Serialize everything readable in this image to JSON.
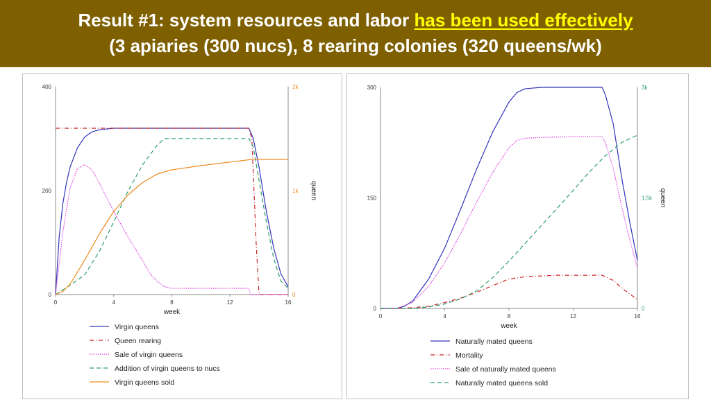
{
  "title": {
    "line1_prefix": "Result #1: system resources and labor ",
    "line1_highlight": "has been used effectively",
    "line2": "(3 apiaries (300 nucs), 8 rearing colonies (320 queens/wk)"
  },
  "colors": {
    "banner": "#7f6000",
    "title_text": "#ffffff",
    "highlight": "#ffff00"
  },
  "chart_data": [
    {
      "type": "line",
      "xlabel": "week",
      "ylabel_right": "queen",
      "xlim": [
        0,
        16
      ],
      "xticks": [
        "0",
        "4",
        "8",
        "12",
        "16"
      ],
      "ylim": [
        0,
        400
      ],
      "yticks_left": [
        "0",
        "200",
        "400"
      ],
      "ylim_right": [
        0,
        2000
      ],
      "yticks_right": [
        "0",
        "1k",
        "2k"
      ],
      "legend_placement": "bottom",
      "series": [
        {
          "name": "Virgin queens",
          "axis": "left",
          "color": "#3333bb",
          "dash": "",
          "x": [
            0,
            0.25,
            0.5,
            0.75,
            1,
            1.5,
            2,
            2.5,
            3,
            4,
            5,
            6,
            8,
            10,
            12,
            13.3,
            13.6,
            14,
            14.5,
            15,
            15.5,
            16
          ],
          "y": [
            0,
            110,
            175,
            215,
            245,
            282,
            303,
            313,
            317,
            320,
            320,
            320,
            320,
            320,
            320,
            320,
            300,
            245,
            160,
            90,
            40,
            15
          ]
        },
        {
          "name": "Queen rearing",
          "axis": "left",
          "color": "#cc2222",
          "dash": "6,3,1,3",
          "x": [
            0,
            13.3,
            13.5,
            13.8,
            14,
            16
          ],
          "y": [
            320,
            320,
            300,
            100,
            0,
            0
          ]
        },
        {
          "name": "Sale of virgin queens",
          "axis": "left",
          "color": "#e040e0",
          "dash": "1.5,1.5",
          "x": [
            0,
            0.5,
            1,
            1.5,
            2,
            2.5,
            3,
            4,
            5,
            6,
            6.5,
            7,
            7.5,
            8,
            10,
            12,
            13.3,
            13.4,
            16
          ],
          "y": [
            0,
            120,
            205,
            242,
            250,
            240,
            215,
            160,
            110,
            65,
            40,
            25,
            15,
            12,
            12,
            12,
            12,
            0,
            0
          ]
        },
        {
          "name": "Addition of virgin queens to nucs",
          "axis": "right",
          "color": "#2a9d6a",
          "dash": "6,4",
          "x": [
            0,
            1,
            2,
            3,
            4,
            5,
            6,
            7,
            7.5,
            8,
            10,
            12,
            13.3,
            13.6,
            14,
            14.5,
            15,
            15.5,
            16
          ],
          "y": [
            0,
            90,
            190,
            410,
            700,
            1000,
            1250,
            1440,
            1500,
            1500,
            1500,
            1500,
            1500,
            1420,
            1100,
            700,
            350,
            130,
            60
          ]
        },
        {
          "name": "Virgin queens sold",
          "axis": "right",
          "color": "#ee8a1e",
          "dash": "",
          "x": [
            0,
            0.5,
            1,
            2,
            3,
            4,
            5,
            6,
            7,
            8,
            10,
            12,
            13.5,
            16
          ],
          "y": [
            0,
            30,
            100,
            330,
            580,
            800,
            960,
            1080,
            1160,
            1200,
            1240,
            1275,
            1300,
            1300
          ]
        }
      ]
    },
    {
      "type": "line",
      "xlabel": "week",
      "ylabel_right": "queen",
      "xlim": [
        0,
        16
      ],
      "xticks": [
        "0",
        "4",
        "8",
        "12",
        "16"
      ],
      "ylim": [
        0,
        300
      ],
      "yticks_left": [
        "0",
        "150",
        "300"
      ],
      "ylim_right": [
        0,
        3000
      ],
      "yticks_right": [
        "0",
        "1.5k",
        "3k"
      ],
      "legend_placement": "bottom",
      "series": [
        {
          "name": "Naturally mated queens",
          "axis": "left",
          "color": "#3333bb",
          "dash": "",
          "x": [
            0,
            1,
            1.5,
            2,
            3,
            4,
            5,
            6,
            7,
            8,
            8.5,
            9,
            10,
            12,
            13.8,
            14,
            14.5,
            15,
            15.5,
            16
          ],
          "y": [
            0,
            0,
            3,
            10,
            40,
            82,
            135,
            190,
            240,
            280,
            293,
            298,
            300,
            300,
            300,
            290,
            250,
            180,
            120,
            65
          ]
        },
        {
          "name": "Mortality",
          "axis": "left",
          "color": "#cc2222",
          "dash": "6,3,1,3",
          "x": [
            0,
            1,
            2,
            3,
            4,
            5,
            6,
            7,
            8,
            9,
            10,
            11,
            12,
            13,
            13.8,
            14.5,
            15,
            16
          ],
          "y": [
            0,
            0,
            1,
            3,
            8,
            14,
            22,
            31,
            40,
            43,
            44,
            45,
            45,
            45,
            45,
            38,
            28,
            12
          ]
        },
        {
          "name": "Sale of naturally mated queens",
          "axis": "left",
          "color": "#e040e0",
          "dash": "1.5,1.5",
          "x": [
            0,
            1,
            2,
            3,
            4,
            5,
            6,
            7,
            8,
            8.5,
            9,
            10,
            12,
            13.8,
            14,
            14.5,
            15,
            15.5,
            16
          ],
          "y": [
            0,
            0,
            8,
            30,
            62,
            102,
            145,
            185,
            218,
            228,
            231,
            232,
            233,
            233,
            225,
            190,
            140,
            95,
            55
          ]
        },
        {
          "name": "Naturally mated queens sold",
          "axis": "right",
          "color": "#2a9d6a",
          "dash": "6,4",
          "x": [
            0,
            2,
            3,
            4,
            5,
            6,
            7,
            8,
            9,
            10,
            11,
            12,
            13,
            14,
            15,
            16
          ],
          "y": [
            0,
            0,
            20,
            60,
            130,
            240,
            420,
            640,
            880,
            1120,
            1360,
            1600,
            1850,
            2070,
            2250,
            2350
          ]
        }
      ]
    }
  ]
}
